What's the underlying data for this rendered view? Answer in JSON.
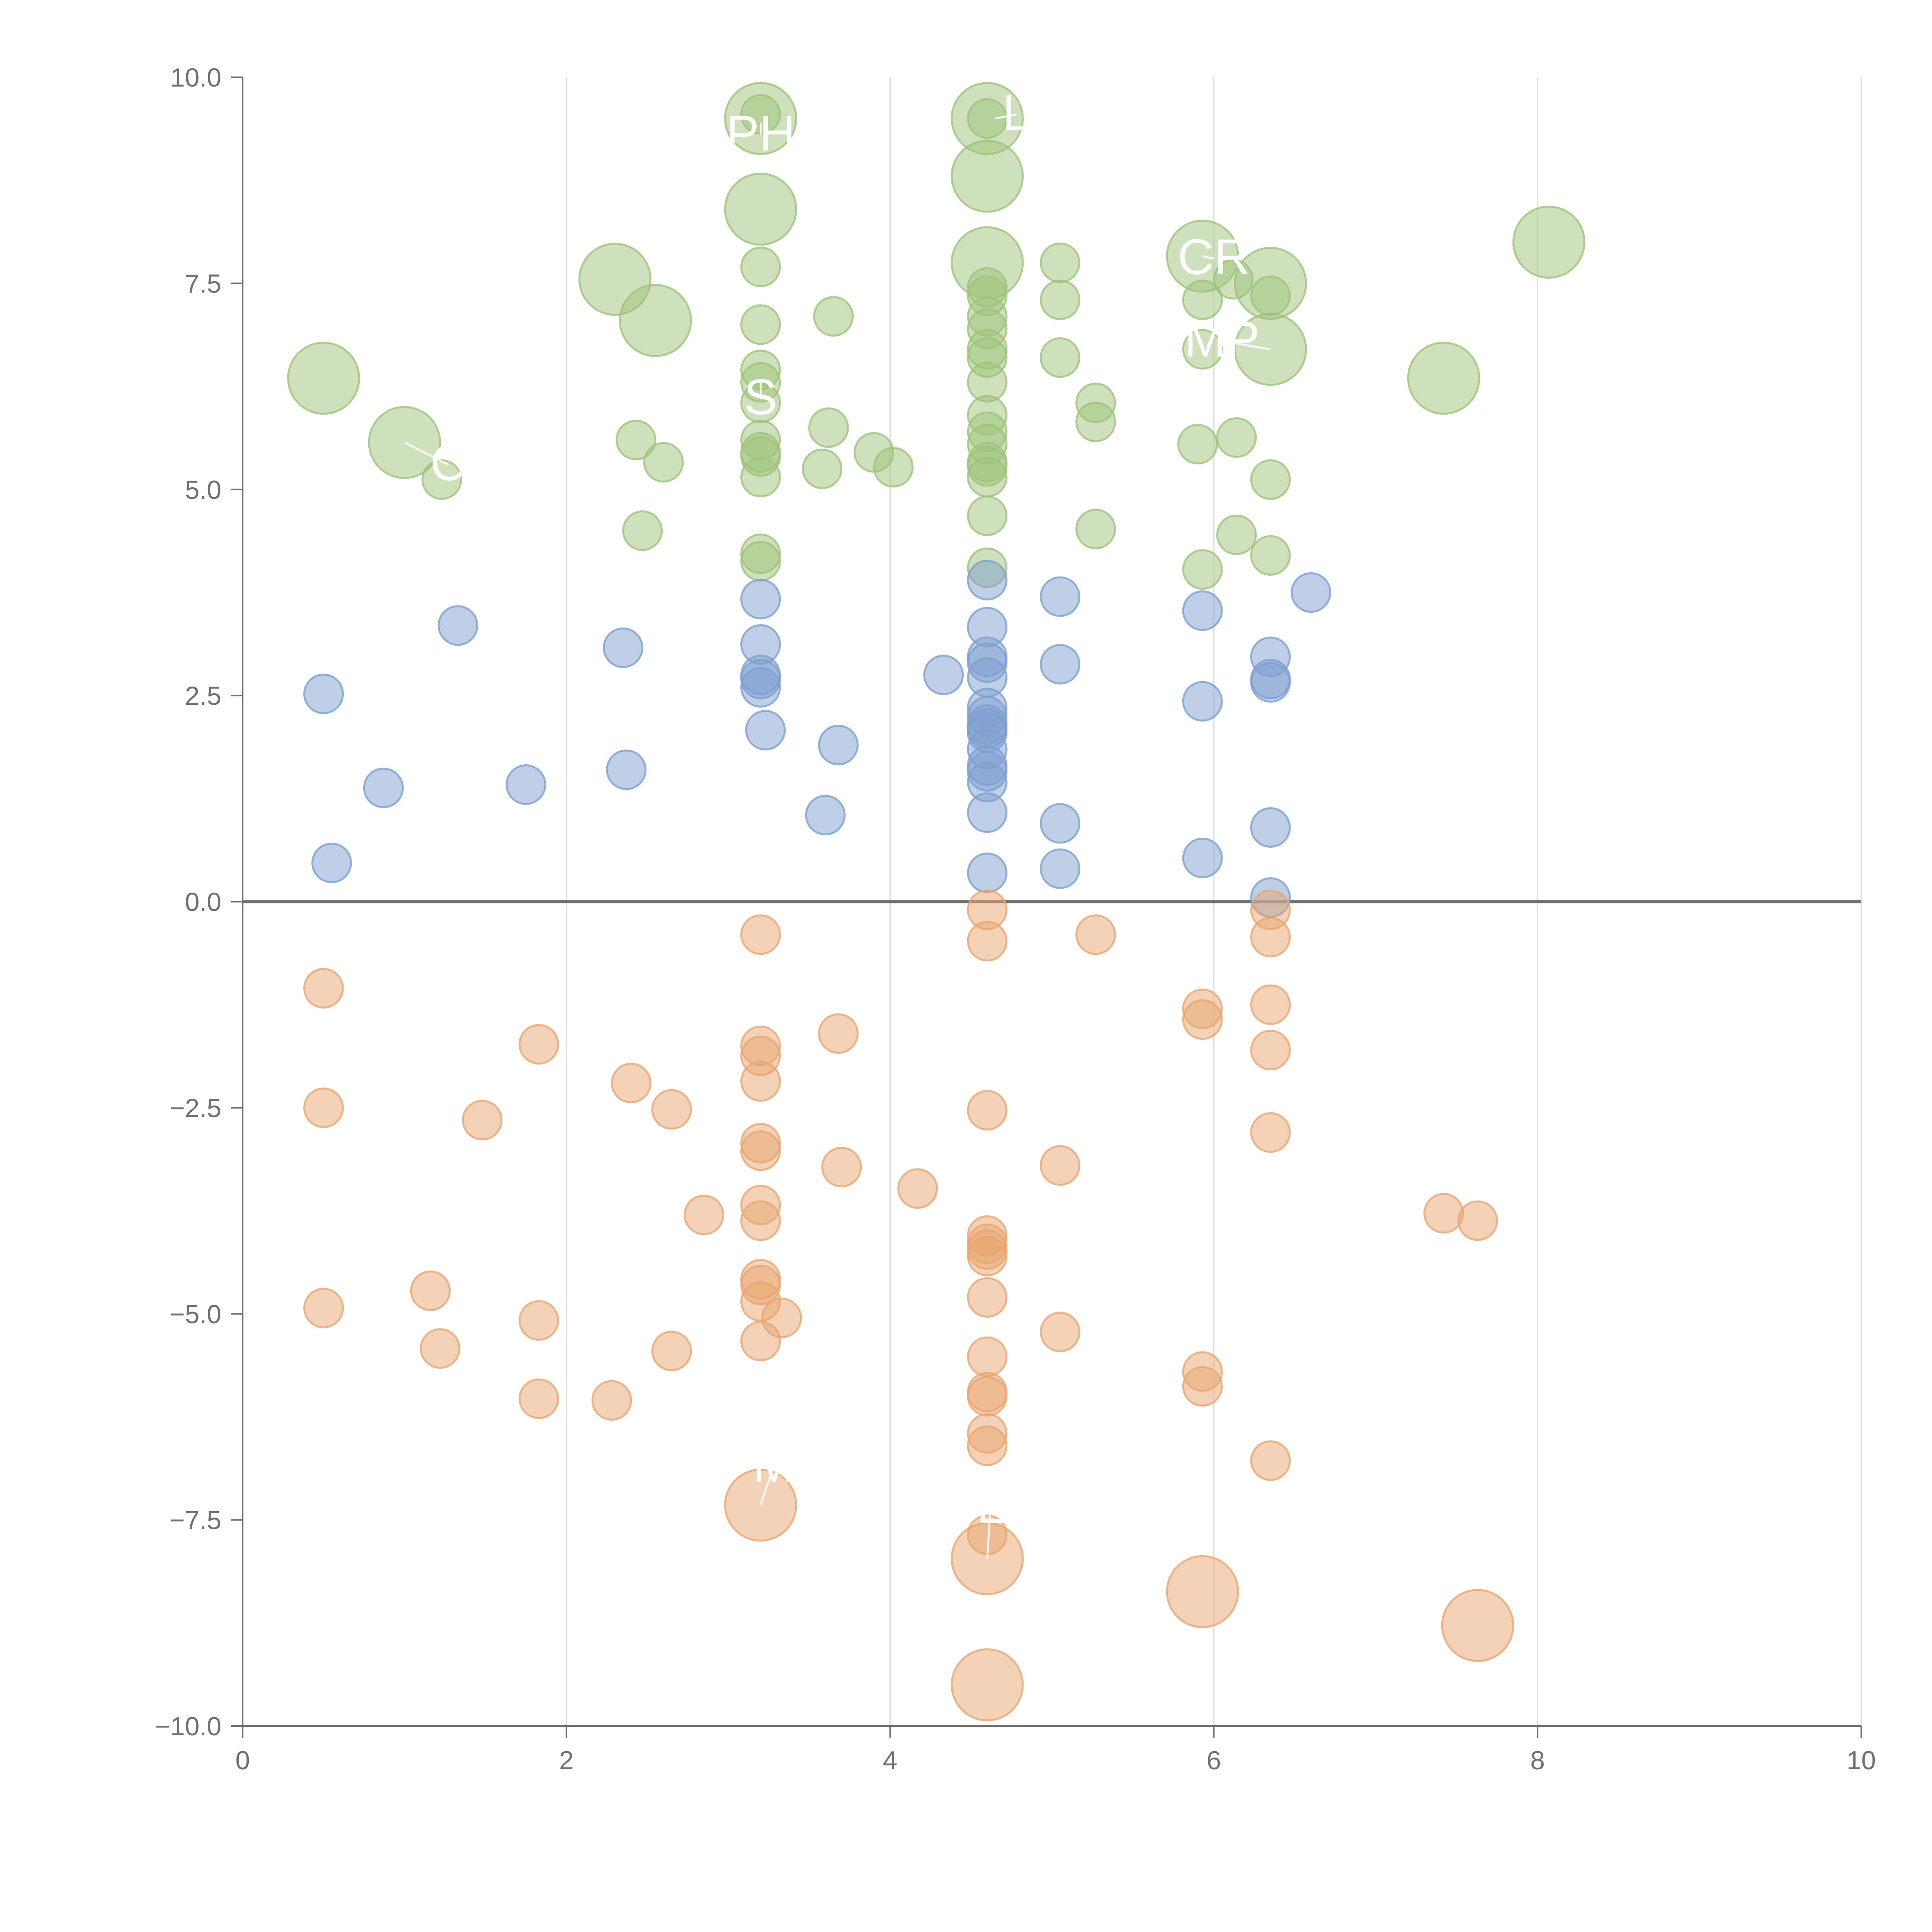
{
  "chart_data": {
    "type": "scatter",
    "title": "",
    "xlabel": "",
    "ylabel": "",
    "xlim": [
      0,
      10
    ],
    "ylim": [
      -10,
      10
    ],
    "x_ticks": [
      "0",
      "2",
      "4",
      "6",
      "8",
      "10"
    ],
    "y_ticks": [
      "10.0",
      "7.5",
      "5.0",
      "2.5",
      "0.0",
      "−2.5",
      "−5.0",
      "−7.5",
      "−10.0"
    ],
    "x_tick_values": [
      0,
      2,
      4,
      6,
      8,
      10
    ],
    "y_tick_values": [
      10,
      7.5,
      5,
      2.5,
      0,
      -2.5,
      -5,
      -7.5,
      -10
    ],
    "vertical_grid": true,
    "horizontal_grid": false,
    "zero_line": true,
    "series": [
      {
        "name": "green",
        "color": "#9dc37a",
        "points": [
          {
            "x": 3.2,
            "y": 9.5,
            "size": "large"
          },
          {
            "x": 3.2,
            "y": 9.55,
            "size": "small"
          },
          {
            "x": 4.6,
            "y": 9.5,
            "size": "large"
          },
          {
            "x": 4.6,
            "y": 9.5,
            "size": "small"
          },
          {
            "x": 4.6,
            "y": 8.8,
            "size": "large"
          },
          {
            "x": 3.2,
            "y": 8.4,
            "size": "large"
          },
          {
            "x": 8.07,
            "y": 8.0,
            "size": "large"
          },
          {
            "x": 5.93,
            "y": 7.83,
            "size": "large"
          },
          {
            "x": 4.6,
            "y": 7.75,
            "size": "large"
          },
          {
            "x": 5.05,
            "y": 7.75,
            "size": "small"
          },
          {
            "x": 3.2,
            "y": 7.7,
            "size": "small"
          },
          {
            "x": 2.3,
            "y": 7.55,
            "size": "large"
          },
          {
            "x": 6.12,
            "y": 7.55,
            "size": "small"
          },
          {
            "x": 6.35,
            "y": 7.5,
            "size": "large"
          },
          {
            "x": 4.6,
            "y": 7.45,
            "size": "small"
          },
          {
            "x": 4.6,
            "y": 7.35,
            "size": "small"
          },
          {
            "x": 6.35,
            "y": 7.35,
            "size": "small"
          },
          {
            "x": 5.93,
            "y": 7.3,
            "size": "small"
          },
          {
            "x": 5.05,
            "y": 7.3,
            "size": "small"
          },
          {
            "x": 3.65,
            "y": 7.1,
            "size": "small"
          },
          {
            "x": 4.6,
            "y": 7.1,
            "size": "small"
          },
          {
            "x": 2.55,
            "y": 7.05,
            "size": "large"
          },
          {
            "x": 3.2,
            "y": 7.0,
            "size": "small"
          },
          {
            "x": 4.6,
            "y": 6.95,
            "size": "small"
          },
          {
            "x": 4.6,
            "y": 6.7,
            "size": "small"
          },
          {
            "x": 5.93,
            "y": 6.7,
            "size": "small"
          },
          {
            "x": 6.35,
            "y": 6.7,
            "size": "large"
          },
          {
            "x": 4.6,
            "y": 6.6,
            "size": "small"
          },
          {
            "x": 5.05,
            "y": 6.6,
            "size": "small"
          },
          {
            "x": 3.2,
            "y": 6.45,
            "size": "small"
          },
          {
            "x": 0.5,
            "y": 6.35,
            "size": "large"
          },
          {
            "x": 7.42,
            "y": 6.35,
            "size": "large"
          },
          {
            "x": 3.2,
            "y": 6.3,
            "size": "small"
          },
          {
            "x": 4.6,
            "y": 6.3,
            "size": "small"
          },
          {
            "x": 5.27,
            "y": 6.05,
            "size": "small"
          },
          {
            "x": 3.2,
            "y": 6.05,
            "size": "small"
          },
          {
            "x": 4.6,
            "y": 5.9,
            "size": "small"
          },
          {
            "x": 5.27,
            "y": 5.82,
            "size": "small"
          },
          {
            "x": 3.62,
            "y": 5.75,
            "size": "small"
          },
          {
            "x": 4.6,
            "y": 5.7,
            "size": "small"
          },
          {
            "x": 6.14,
            "y": 5.63,
            "size": "small"
          },
          {
            "x": 3.2,
            "y": 5.6,
            "size": "small"
          },
          {
            "x": 2.43,
            "y": 5.6,
            "size": "small"
          },
          {
            "x": 1.0,
            "y": 5.57,
            "size": "large"
          },
          {
            "x": 4.6,
            "y": 5.55,
            "size": "small"
          },
          {
            "x": 5.9,
            "y": 5.55,
            "size": "small"
          },
          {
            "x": 3.2,
            "y": 5.45,
            "size": "small"
          },
          {
            "x": 3.9,
            "y": 5.45,
            "size": "small"
          },
          {
            "x": 3.2,
            "y": 5.4,
            "size": "small"
          },
          {
            "x": 2.6,
            "y": 5.33,
            "size": "small"
          },
          {
            "x": 4.6,
            "y": 5.33,
            "size": "small"
          },
          {
            "x": 4.6,
            "y": 5.28,
            "size": "small"
          },
          {
            "x": 4.02,
            "y": 5.27,
            "size": "small"
          },
          {
            "x": 3.58,
            "y": 5.25,
            "size": "small"
          },
          {
            "x": 3.2,
            "y": 5.15,
            "size": "small"
          },
          {
            "x": 4.6,
            "y": 5.15,
            "size": "small"
          },
          {
            "x": 1.23,
            "y": 5.12,
            "size": "small"
          },
          {
            "x": 6.35,
            "y": 5.12,
            "size": "small"
          },
          {
            "x": 4.6,
            "y": 4.68,
            "size": "small"
          },
          {
            "x": 5.27,
            "y": 4.52,
            "size": "small"
          },
          {
            "x": 2.47,
            "y": 4.5,
            "size": "small"
          },
          {
            "x": 6.14,
            "y": 4.45,
            "size": "small"
          },
          {
            "x": 3.2,
            "y": 4.22,
            "size": "small"
          },
          {
            "x": 6.35,
            "y": 4.2,
            "size": "small"
          },
          {
            "x": 3.2,
            "y": 4.13,
            "size": "small"
          },
          {
            "x": 4.6,
            "y": 4.05,
            "size": "small"
          },
          {
            "x": 5.93,
            "y": 4.03,
            "size": "small"
          }
        ]
      },
      {
        "name": "blue",
        "color": "#7d9fd0",
        "points": [
          {
            "x": 4.6,
            "y": 3.9,
            "size": "small"
          },
          {
            "x": 6.6,
            "y": 3.75,
            "size": "small"
          },
          {
            "x": 5.05,
            "y": 3.7,
            "size": "small"
          },
          {
            "x": 3.2,
            "y": 3.67,
            "size": "small"
          },
          {
            "x": 5.93,
            "y": 3.53,
            "size": "small"
          },
          {
            "x": 1.33,
            "y": 3.35,
            "size": "small"
          },
          {
            "x": 4.6,
            "y": 3.33,
            "size": "small"
          },
          {
            "x": 3.2,
            "y": 3.12,
            "size": "small"
          },
          {
            "x": 2.35,
            "y": 3.08,
            "size": "small"
          },
          {
            "x": 4.6,
            "y": 2.97,
            "size": "small"
          },
          {
            "x": 6.35,
            "y": 2.97,
            "size": "small"
          },
          {
            "x": 4.6,
            "y": 2.9,
            "size": "small"
          },
          {
            "x": 5.05,
            "y": 2.88,
            "size": "small"
          },
          {
            "x": 4.33,
            "y": 2.75,
            "size": "small"
          },
          {
            "x": 3.2,
            "y": 2.75,
            "size": "small"
          },
          {
            "x": 4.6,
            "y": 2.72,
            "size": "small"
          },
          {
            "x": 3.2,
            "y": 2.7,
            "size": "small"
          },
          {
            "x": 6.35,
            "y": 2.7,
            "size": "small"
          },
          {
            "x": 6.35,
            "y": 2.66,
            "size": "small"
          },
          {
            "x": 3.2,
            "y": 2.6,
            "size": "small"
          },
          {
            "x": 0.5,
            "y": 2.52,
            "size": "small"
          },
          {
            "x": 5.93,
            "y": 2.43,
            "size": "small"
          },
          {
            "x": 4.6,
            "y": 2.35,
            "size": "small"
          },
          {
            "x": 4.6,
            "y": 2.25,
            "size": "small"
          },
          {
            "x": 4.6,
            "y": 2.15,
            "size": "small"
          },
          {
            "x": 4.6,
            "y": 2.1,
            "size": "small"
          },
          {
            "x": 3.23,
            "y": 2.08,
            "size": "small"
          },
          {
            "x": 4.6,
            "y": 2.05,
            "size": "small"
          },
          {
            "x": 3.68,
            "y": 1.9,
            "size": "small"
          },
          {
            "x": 4.6,
            "y": 1.85,
            "size": "small"
          },
          {
            "x": 4.6,
            "y": 1.65,
            "size": "small"
          },
          {
            "x": 2.37,
            "y": 1.6,
            "size": "small"
          },
          {
            "x": 4.6,
            "y": 1.58,
            "size": "small"
          },
          {
            "x": 4.6,
            "y": 1.45,
            "size": "small"
          },
          {
            "x": 1.75,
            "y": 1.42,
            "size": "small"
          },
          {
            "x": 0.87,
            "y": 1.38,
            "size": "small"
          },
          {
            "x": 4.6,
            "y": 1.08,
            "size": "small"
          },
          {
            "x": 3.6,
            "y": 1.05,
            "size": "small"
          },
          {
            "x": 5.05,
            "y": 0.95,
            "size": "small"
          },
          {
            "x": 6.35,
            "y": 0.9,
            "size": "small"
          },
          {
            "x": 5.93,
            "y": 0.53,
            "size": "small"
          },
          {
            "x": 0.55,
            "y": 0.47,
            "size": "small"
          },
          {
            "x": 5.05,
            "y": 0.4,
            "size": "small"
          },
          {
            "x": 4.6,
            "y": 0.35,
            "size": "small"
          },
          {
            "x": 6.35,
            "y": 0.05,
            "size": "small"
          }
        ]
      },
      {
        "name": "orange",
        "color": "#e8a570",
        "points": [
          {
            "x": 4.6,
            "y": -0.1,
            "size": "small"
          },
          {
            "x": 6.35,
            "y": -0.1,
            "size": "small"
          },
          {
            "x": 3.2,
            "y": -0.4,
            "size": "small"
          },
          {
            "x": 5.27,
            "y": -0.4,
            "size": "small"
          },
          {
            "x": 6.35,
            "y": -0.43,
            "size": "small"
          },
          {
            "x": 4.6,
            "y": -0.48,
            "size": "small"
          },
          {
            "x": 0.5,
            "y": -1.05,
            "size": "small"
          },
          {
            "x": 6.35,
            "y": -1.25,
            "size": "small"
          },
          {
            "x": 5.93,
            "y": -1.3,
            "size": "small"
          },
          {
            "x": 5.93,
            "y": -1.43,
            "size": "small"
          },
          {
            "x": 3.68,
            "y": -1.6,
            "size": "small"
          },
          {
            "x": 1.83,
            "y": -1.73,
            "size": "small"
          },
          {
            "x": 3.2,
            "y": -1.75,
            "size": "small"
          },
          {
            "x": 6.35,
            "y": -1.8,
            "size": "small"
          },
          {
            "x": 3.2,
            "y": -1.87,
            "size": "small"
          },
          {
            "x": 3.2,
            "y": -2.18,
            "size": "small"
          },
          {
            "x": 2.4,
            "y": -2.2,
            "size": "small"
          },
          {
            "x": 0.5,
            "y": -2.5,
            "size": "small"
          },
          {
            "x": 2.65,
            "y": -2.52,
            "size": "small"
          },
          {
            "x": 4.6,
            "y": -2.53,
            "size": "small"
          },
          {
            "x": 1.48,
            "y": -2.65,
            "size": "small"
          },
          {
            "x": 6.35,
            "y": -2.8,
            "size": "small"
          },
          {
            "x": 3.2,
            "y": -2.93,
            "size": "small"
          },
          {
            "x": 3.2,
            "y": -3.02,
            "size": "small"
          },
          {
            "x": 5.05,
            "y": -3.2,
            "size": "small"
          },
          {
            "x": 3.7,
            "y": -3.22,
            "size": "small"
          },
          {
            "x": 4.17,
            "y": -3.48,
            "size": "small"
          },
          {
            "x": 3.2,
            "y": -3.68,
            "size": "small"
          },
          {
            "x": 2.85,
            "y": -3.8,
            "size": "small"
          },
          {
            "x": 7.42,
            "y": -3.78,
            "size": "small"
          },
          {
            "x": 3.2,
            "y": -3.87,
            "size": "small"
          },
          {
            "x": 7.63,
            "y": -3.87,
            "size": "small"
          },
          {
            "x": 4.6,
            "y": -4.05,
            "size": "small"
          },
          {
            "x": 4.6,
            "y": -4.15,
            "size": "small"
          },
          {
            "x": 4.6,
            "y": -4.22,
            "size": "small"
          },
          {
            "x": 4.6,
            "y": -4.3,
            "size": "small"
          },
          {
            "x": 3.2,
            "y": -4.58,
            "size": "small"
          },
          {
            "x": 3.2,
            "y": -4.65,
            "size": "small"
          },
          {
            "x": 1.16,
            "y": -4.72,
            "size": "small"
          },
          {
            "x": 4.6,
            "y": -4.8,
            "size": "small"
          },
          {
            "x": 3.2,
            "y": -4.85,
            "size": "small"
          },
          {
            "x": 0.5,
            "y": -4.93,
            "size": "small"
          },
          {
            "x": 3.33,
            "y": -5.05,
            "size": "small"
          },
          {
            "x": 1.83,
            "y": -5.08,
            "size": "small"
          },
          {
            "x": 5.05,
            "y": -5.22,
            "size": "small"
          },
          {
            "x": 3.2,
            "y": -5.33,
            "size": "small"
          },
          {
            "x": 1.22,
            "y": -5.42,
            "size": "small"
          },
          {
            "x": 2.65,
            "y": -5.45,
            "size": "small"
          },
          {
            "x": 4.6,
            "y": -5.52,
            "size": "small"
          },
          {
            "x": 5.93,
            "y": -5.7,
            "size": "small"
          },
          {
            "x": 5.93,
            "y": -5.88,
            "size": "small"
          },
          {
            "x": 4.6,
            "y": -5.95,
            "size": "small"
          },
          {
            "x": 4.6,
            "y": -6.0,
            "size": "small"
          },
          {
            "x": 1.83,
            "y": -6.03,
            "size": "small"
          },
          {
            "x": 2.28,
            "y": -6.05,
            "size": "small"
          },
          {
            "x": 4.6,
            "y": -6.45,
            "size": "small"
          },
          {
            "x": 4.6,
            "y": -6.6,
            "size": "small"
          },
          {
            "x": 6.35,
            "y": -6.78,
            "size": "small"
          },
          {
            "x": 3.2,
            "y": -7.32,
            "size": "large"
          },
          {
            "x": 4.6,
            "y": -7.68,
            "size": "small"
          },
          {
            "x": 4.6,
            "y": -7.97,
            "size": "large"
          },
          {
            "x": 5.93,
            "y": -8.37,
            "size": "large"
          },
          {
            "x": 7.63,
            "y": -8.78,
            "size": "large"
          },
          {
            "x": 4.6,
            "y": -9.5,
            "size": "large"
          }
        ]
      }
    ],
    "annotations": [
      {
        "text": "PH",
        "x": 3.2,
        "y": 9.3,
        "anchor_x": 3.2,
        "anchor_y": 9.45
      },
      {
        "text": "L",
        "x": 4.78,
        "y": 9.55,
        "anchor_x": 4.65,
        "anchor_y": 9.5
      },
      {
        "text": "CR",
        "x": 6.0,
        "y": 7.8,
        "anchor_x": 5.93,
        "anchor_y": 7.83
      },
      {
        "text": "MP",
        "x": 6.05,
        "y": 6.8,
        "anchor_x": 6.35,
        "anchor_y": 6.7
      },
      {
        "text": "S",
        "x": 3.2,
        "y": 6.1,
        "anchor_x": 3.2,
        "anchor_y": 6.3
      },
      {
        "text": "C",
        "x": 1.27,
        "y": 5.3,
        "anchor_x": 1.0,
        "anchor_y": 5.57
      },
      {
        "text": "M",
        "x": 3.28,
        "y": -6.85,
        "anchor_x": 3.2,
        "anchor_y": -7.32
      },
      {
        "text": "L",
        "x": 4.62,
        "y": -7.35,
        "anchor_x": 4.6,
        "anchor_y": -7.97
      }
    ]
  }
}
